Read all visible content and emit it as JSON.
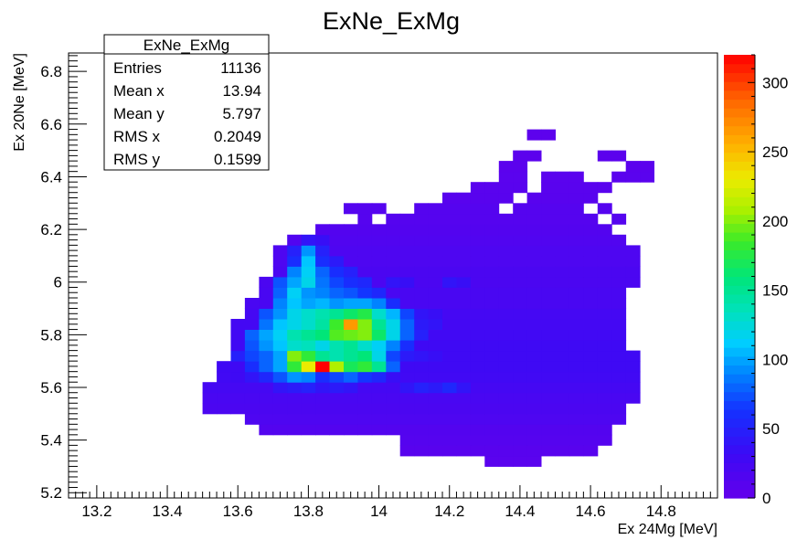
{
  "chart_data": {
    "type": "heatmap",
    "title": "ExNe_ExMg",
    "xlabel": "Ex 24Mg [MeV]",
    "ylabel": "Ex 20Ne [MeV]",
    "xlim": [
      13.12,
      14.96
    ],
    "ylim": [
      5.18,
      6.87
    ],
    "x_ticks": [
      "13.2",
      "13.4",
      "13.6",
      "13.8",
      "14",
      "14.2",
      "14.4",
      "14.6",
      "14.8"
    ],
    "y_ticks": [
      "5.2",
      "5.4",
      "5.6",
      "5.8",
      "6",
      "6.2",
      "6.4",
      "6.6",
      "6.8"
    ],
    "bin_width_x": 0.04,
    "bin_width_y": 0.04,
    "colorbar": {
      "min": 0,
      "max": 320,
      "ticks": [
        "0",
        "50",
        "100",
        "150",
        "200",
        "250",
        "300"
      ]
    },
    "stats": {
      "name": "ExNe_ExMg",
      "entries_label": "Entries",
      "entries": "11136",
      "mean_x_label": "Mean x",
      "mean_x": "13.94",
      "mean_y_label": "Mean y",
      "mean_y": "5.797",
      "rms_x_label": "RMS x",
      "rms_x": "0.2049",
      "rms_y_label": "RMS y",
      "rms_y": "0.1599"
    }
  }
}
